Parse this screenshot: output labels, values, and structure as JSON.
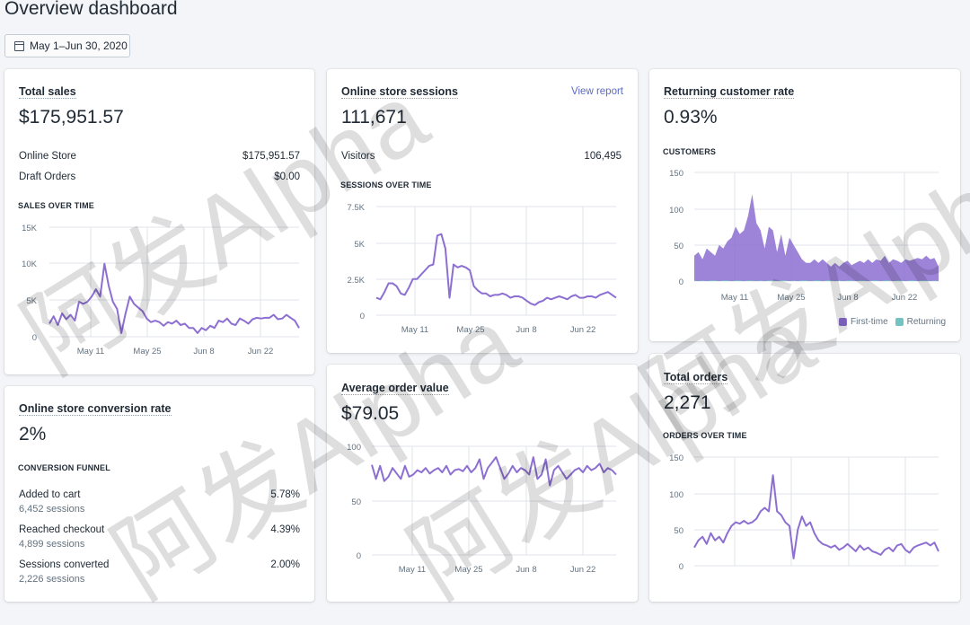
{
  "header": {
    "title": "Overview dashboard",
    "date_range": "May 1–Jun 30, 2020"
  },
  "colors": {
    "accent": "#8c6fd1",
    "returning": "#73c3c5",
    "link": "#5c6ac4"
  },
  "watermark": "阿发Alpha",
  "total_sales": {
    "title": "Total sales",
    "value": "$175,951.57",
    "rows": [
      {
        "label": "Online Store",
        "value": "$175,951.57"
      },
      {
        "label": "Draft Orders",
        "value": "$0.00"
      }
    ],
    "section": "SALES OVER TIME",
    "yticks": [
      "15K",
      "10K",
      "5K",
      "0"
    ],
    "xticks": [
      "May 11",
      "May 25",
      "Jun 8",
      "Jun 22"
    ]
  },
  "sessions": {
    "title": "Online store sessions",
    "link": "View report",
    "value": "111,671",
    "rows": [
      {
        "label": "Visitors",
        "value": "106,495"
      }
    ],
    "section": "SESSIONS OVER TIME",
    "yticks": [
      "7.5K",
      "5K",
      "2.5K",
      "0"
    ],
    "xticks": [
      "May 11",
      "May 25",
      "Jun 8",
      "Jun 22"
    ]
  },
  "returning": {
    "title": "Returning customer rate",
    "value": "0.93%",
    "section": "CUSTOMERS",
    "yticks": [
      "150",
      "100",
      "50",
      "0"
    ],
    "xticks": [
      "May 11",
      "May 25",
      "Jun 8",
      "Jun 22"
    ],
    "legend": [
      "First-time",
      "Returning"
    ]
  },
  "conversion": {
    "title": "Online store conversion rate",
    "value": "2%",
    "section": "CONVERSION FUNNEL",
    "rows": [
      {
        "label": "Added to cart",
        "sub": "6,452 sessions",
        "value": "5.78%"
      },
      {
        "label": "Reached checkout",
        "sub": "4,899 sessions",
        "value": "4.39%"
      },
      {
        "label": "Sessions converted",
        "sub": "2,226 sessions",
        "value": "2.00%"
      }
    ]
  },
  "aov": {
    "title": "Average order value",
    "value": "$79.05",
    "yticks": [
      "100",
      "50",
      "0"
    ],
    "xticks": [
      "May 11",
      "May 25",
      "Jun 8",
      "Jun 22"
    ]
  },
  "orders": {
    "title": "Total orders",
    "value": "2,271",
    "section": "ORDERS OVER TIME",
    "yticks": [
      "150",
      "100",
      "50",
      "0"
    ]
  },
  "chart_data": [
    {
      "type": "line",
      "title": "SALES OVER TIME",
      "ylim": [
        0,
        15000
      ],
      "xticks": [
        "May 11",
        "May 25",
        "Jun 8",
        "Jun 22"
      ],
      "values": [
        1800,
        2800,
        1600,
        3200,
        2400,
        3000,
        2200,
        4800,
        4500,
        4800,
        5500,
        6500,
        5500,
        10000,
        7000,
        4800,
        3800,
        500,
        3200,
        5500,
        4500,
        4000,
        3500,
        2500,
        2000,
        2200,
        2000,
        1500,
        2000,
        1800,
        2200,
        1600,
        1800,
        1200,
        1200,
        500,
        1200,
        900,
        1500,
        1200,
        2200,
        2000,
        2500,
        1800,
        1600,
        2500,
        2200,
        1800,
        2400,
        2600,
        2500,
        2600,
        2600,
        3000,
        2400,
        2500,
        3000,
        2600,
        2200,
        1200
      ]
    },
    {
      "type": "line",
      "title": "SESSIONS OVER TIME",
      "ylim": [
        0,
        7500
      ],
      "xticks": [
        "May 11",
        "May 25",
        "Jun 8",
        "Jun 22"
      ],
      "values": [
        1200,
        1100,
        1600,
        2200,
        2200,
        2000,
        1500,
        1400,
        1900,
        2500,
        2500,
        2800,
        3100,
        3400,
        3500,
        5500,
        5600,
        4600,
        1200,
        3500,
        3300,
        3400,
        3300,
        3100,
        2000,
        1700,
        1500,
        1500,
        1300,
        1400,
        1400,
        1500,
        1400,
        1200,
        1300,
        1300,
        1200,
        1000,
        800,
        700,
        900,
        1000,
        1200,
        1100,
        1200,
        1300,
        1200,
        1100,
        1300,
        1400,
        1200,
        1200,
        1300,
        1300,
        1200,
        1400,
        1500,
        1600,
        1400,
        1200
      ]
    },
    {
      "type": "area",
      "title": "CUSTOMERS",
      "ylim": [
        0,
        150
      ],
      "xticks": [
        "May 11",
        "May 25",
        "Jun 8",
        "Jun 22"
      ],
      "series": [
        {
          "name": "First-time",
          "values": [
            35,
            40,
            30,
            45,
            40,
            35,
            50,
            45,
            55,
            60,
            75,
            65,
            70,
            90,
            120,
            80,
            70,
            45,
            75,
            70,
            40,
            65,
            35,
            60,
            50,
            40,
            30,
            25,
            25,
            30,
            25,
            30,
            25,
            20,
            25,
            20,
            25,
            28,
            22,
            25,
            28,
            25,
            30,
            25,
            30,
            28,
            35,
            25,
            30,
            28,
            25,
            30,
            28,
            30,
            32,
            30,
            35,
            30,
            32,
            20
          ]
        },
        {
          "name": "Returning",
          "values": [
            1,
            0,
            1,
            0,
            1,
            1,
            0,
            1,
            1,
            0,
            1,
            1,
            0,
            1,
            1,
            0,
            1,
            0,
            1,
            1,
            0,
            1,
            1,
            0,
            1,
            0,
            1,
            1,
            0,
            1,
            1,
            0,
            1,
            1,
            0,
            1,
            0,
            1,
            1,
            0,
            1,
            1,
            0,
            1,
            1,
            0,
            1,
            1,
            0,
            1,
            1,
            0,
            1,
            1,
            0,
            1,
            1,
            0,
            1,
            0
          ]
        }
      ]
    },
    {
      "type": "line",
      "title": "Average order value",
      "ylim": [
        0,
        100
      ],
      "xticks": [
        "May 11",
        "May 25",
        "Jun 8",
        "Jun 22"
      ],
      "values": [
        83,
        70,
        82,
        68,
        72,
        80,
        75,
        70,
        82,
        72,
        74,
        78,
        76,
        80,
        75,
        78,
        80,
        76,
        82,
        74,
        78,
        79,
        77,
        82,
        76,
        80,
        88,
        70,
        80,
        85,
        90,
        80,
        70,
        75,
        82,
        76,
        80,
        78,
        74,
        90,
        70,
        74,
        88,
        64,
        78,
        82,
        76,
        70,
        74,
        78,
        80,
        76,
        82,
        78,
        80,
        84,
        76,
        80,
        78,
        74
      ]
    },
    {
      "type": "line",
      "title": "ORDERS OVER TIME",
      "ylim": [
        0,
        150
      ],
      "values": [
        25,
        35,
        40,
        30,
        45,
        35,
        40,
        32,
        45,
        55,
        60,
        58,
        62,
        58,
        60,
        65,
        75,
        80,
        75,
        125,
        75,
        70,
        60,
        55,
        10,
        50,
        68,
        55,
        60,
        45,
        35,
        30,
        28,
        25,
        28,
        22,
        25,
        30,
        25,
        20,
        28,
        22,
        25,
        20,
        18,
        15,
        22,
        25,
        20,
        28,
        30,
        22,
        18,
        25,
        28,
        30,
        32,
        28,
        32,
        20
      ]
    }
  ]
}
